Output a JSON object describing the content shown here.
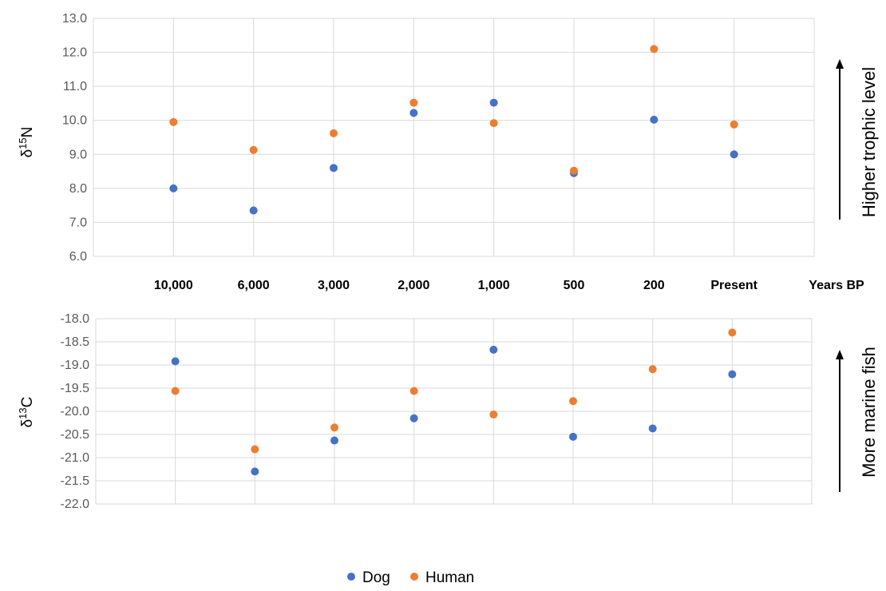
{
  "chart_data": [
    {
      "type": "scatter",
      "ylabel_base": "δ",
      "ylabel_sup": "15",
      "ylabel_tail": "N",
      "ylim": [
        6.0,
        13.0
      ],
      "yticks": [
        "13.0",
        "12.0",
        "11.0",
        "10.0",
        "9.0",
        "8.0",
        "7.0",
        "6.0"
      ],
      "categories": [
        "10,000",
        "6,000",
        "3,000",
        "2,000",
        "1,000",
        "500",
        "200",
        "Present"
      ],
      "x_unit_label": "Years BP",
      "arrow_label": "Higher trophic level",
      "grid": true,
      "series": [
        {
          "name": "Dog",
          "color": "#4472c4",
          "values": [
            8.0,
            7.35,
            8.6,
            10.22,
            10.52,
            8.45,
            10.02,
            9.0
          ]
        },
        {
          "name": "Human",
          "color": "#ed7d31",
          "values": [
            9.95,
            9.13,
            9.62,
            10.52,
            9.92,
            8.52,
            12.1,
            9.88
          ]
        }
      ]
    },
    {
      "type": "scatter",
      "ylabel_base": "δ",
      "ylabel_sup": "13",
      "ylabel_tail": "C",
      "ylim": [
        -22.0,
        -18.0
      ],
      "yticks": [
        "-18.0",
        "-18.5",
        "-19.0",
        "-19.5",
        "-20.0",
        "-20.5",
        "-21.0",
        "-21.5",
        "-22.0"
      ],
      "categories": [
        "10,000",
        "6,000",
        "3,000",
        "2,000",
        "1,000",
        "500",
        "200",
        "Present"
      ],
      "arrow_label": "More marine fish",
      "grid": true,
      "series": [
        {
          "name": "Dog",
          "color": "#4472c4",
          "values": [
            -18.92,
            -21.3,
            -20.63,
            -20.15,
            -18.67,
            -20.55,
            -20.37,
            -19.2
          ]
        },
        {
          "name": "Human",
          "color": "#ed7d31",
          "values": [
            -19.56,
            -20.82,
            -20.35,
            -19.56,
            -20.07,
            -19.78,
            -19.09,
            -18.3
          ]
        }
      ]
    }
  ],
  "legend": {
    "items": [
      {
        "label": "Dog",
        "color": "#4472c4"
      },
      {
        "label": "Human",
        "color": "#ed7d31"
      }
    ]
  }
}
